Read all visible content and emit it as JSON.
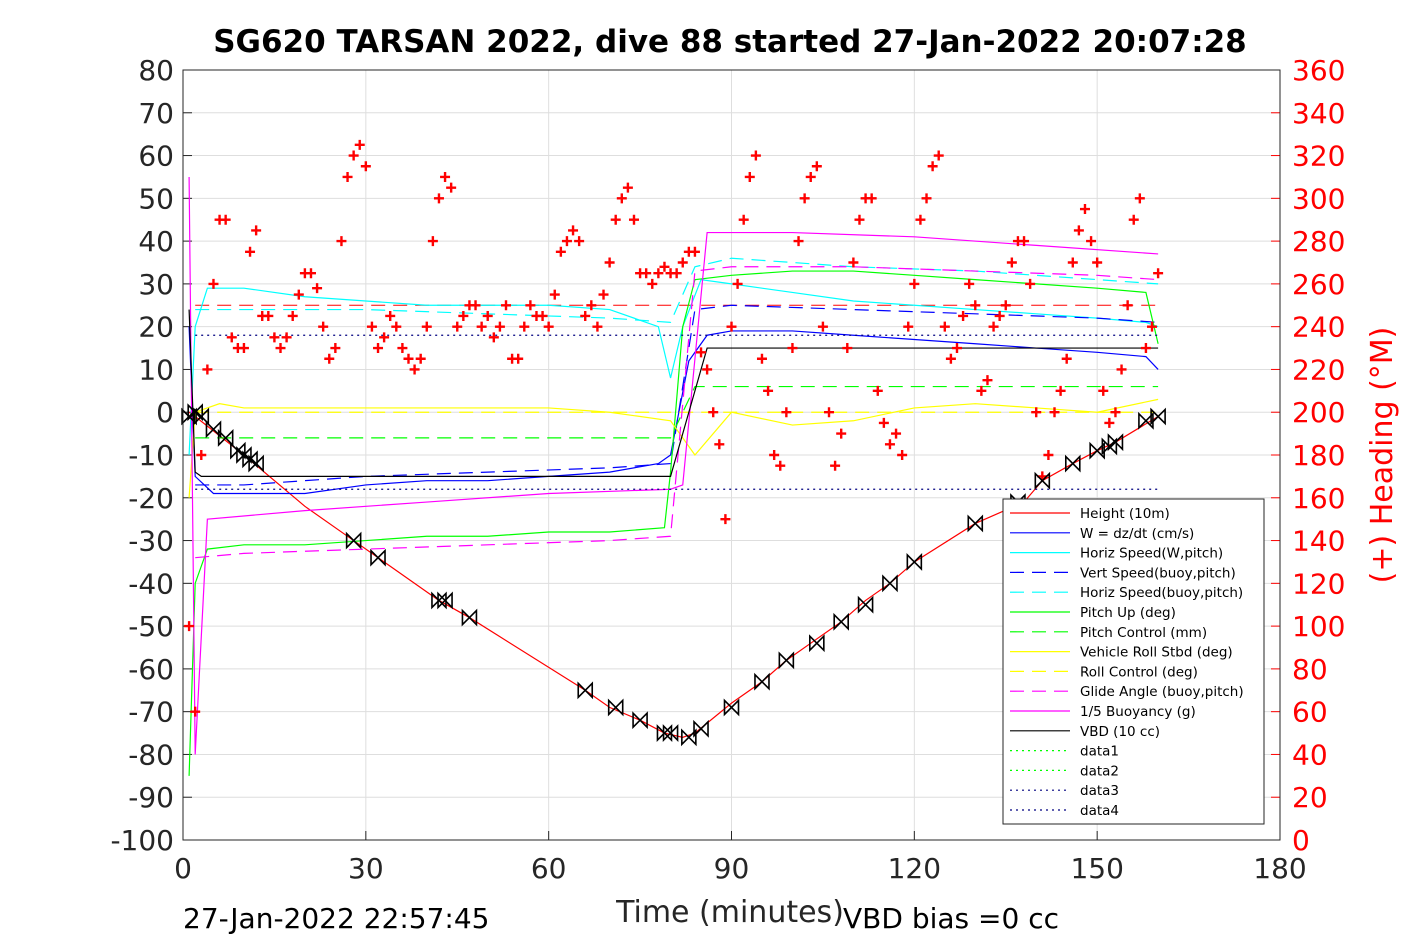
{
  "title": "SG620 TARSAN 2022, dive 88 started 27-Jan-2022 20:07:28",
  "footer": {
    "left": "27-Jan-2022 22:57:45",
    "right": "VBD bias =0 cc"
  },
  "chart_data": {
    "type": "line",
    "xlabel": "Time (minutes)",
    "ylabel": "",
    "ylabel_right": "(+) Heading (°M)",
    "xlim": [
      0,
      180
    ],
    "ylim": [
      -100,
      80
    ],
    "ylim_right": [
      0,
      360
    ],
    "xticks": [
      "0",
      "30",
      "60",
      "90",
      "120",
      "150",
      "180"
    ],
    "yticks": [
      "80",
      "70",
      "60",
      "50",
      "40",
      "30",
      "20",
      "10",
      "0",
      "-10",
      "-20",
      "-30",
      "-40",
      "-50",
      "-60",
      "-70",
      "-80",
      "-90",
      "-100"
    ],
    "yticks_right": [
      "360",
      "340",
      "320",
      "300",
      "280",
      "260",
      "240",
      "220",
      "200",
      "180",
      "160",
      "140",
      "120",
      "100",
      "80",
      "60",
      "40",
      "20",
      "0"
    ],
    "grid": true,
    "legend_placement": "bottom-right",
    "series": [
      {
        "name": "Height (10m)",
        "color": "#ff0000",
        "style": "solid",
        "x": [
          1,
          2,
          10,
          20,
          28,
          32,
          42,
          47,
          66,
          70,
          75,
          79,
          82,
          84,
          90,
          95,
          99,
          104,
          108,
          112,
          116,
          120,
          130,
          138,
          141,
          146,
          150,
          153,
          160
        ],
        "y": [
          0,
          -1,
          -10,
          -22,
          -30,
          -34,
          -44,
          -48,
          -65,
          -69,
          -72,
          -75,
          -76,
          -75,
          -68,
          -63,
          -58,
          -53,
          -49,
          -44,
          -40,
          -35,
          -26,
          -21,
          -16,
          -12,
          -9,
          -7,
          -1
        ]
      },
      {
        "name": "W = dz/dt (cm/s)",
        "color": "#0000ff",
        "style": "solid",
        "x": [
          1,
          2,
          5,
          10,
          20,
          30,
          40,
          50,
          60,
          70,
          78,
          80,
          83,
          86,
          90,
          100,
          110,
          120,
          130,
          140,
          150,
          158,
          160
        ],
        "y": [
          20,
          -15,
          -19,
          -19,
          -19,
          -17,
          -16,
          -16,
          -15,
          -14,
          -12,
          -10,
          12,
          18,
          19,
          19,
          18,
          17,
          16,
          15,
          14,
          13,
          10
        ]
      },
      {
        "name": "Horiz Speed(W,pitch)",
        "color": "#00ffff",
        "style": "solid",
        "x": [
          1,
          2,
          4,
          10,
          20,
          30,
          40,
          50,
          60,
          70,
          78,
          80,
          82,
          85,
          90,
          100,
          110,
          120,
          130,
          140,
          150,
          158,
          160
        ],
        "y": [
          -10,
          20,
          29,
          29,
          27,
          26,
          25,
          25,
          25,
          24,
          20,
          8,
          20,
          31,
          30,
          28,
          26,
          25,
          24,
          23,
          22,
          21,
          20
        ]
      },
      {
        "name": "Vert Speed(buoy,pitch)",
        "color": "#0000ff",
        "style": "dashed",
        "x": [
          2,
          10,
          30,
          50,
          70,
          80,
          84,
          90,
          110,
          130,
          150,
          160
        ],
        "y": [
          -17,
          -17,
          -15,
          -14,
          -13,
          -12,
          24,
          25,
          24,
          23,
          22,
          21
        ]
      },
      {
        "name": "Horiz Speed(buoy,pitch)",
        "color": "#00ffff",
        "style": "dashed",
        "x": [
          2,
          10,
          30,
          50,
          70,
          80,
          84,
          90,
          110,
          130,
          150,
          160
        ],
        "y": [
          24,
          24,
          24,
          23,
          22,
          21,
          34,
          36,
          34,
          33,
          31,
          30
        ]
      },
      {
        "name": "Pitch Up (deg)",
        "color": "#00ff00",
        "style": "solid",
        "x": [
          1,
          2,
          4,
          10,
          20,
          30,
          40,
          50,
          60,
          70,
          79,
          80,
          82,
          84,
          90,
          100,
          110,
          120,
          130,
          140,
          150,
          158,
          160
        ],
        "y": [
          -85,
          -40,
          -32,
          -31,
          -31,
          -30,
          -29,
          -29,
          -28,
          -28,
          -27,
          -14,
          20,
          31,
          32,
          33,
          33,
          32,
          31,
          30,
          29,
          28,
          16
        ]
      },
      {
        "name": "Pitch Control (mm)",
        "color": "#00ff00",
        "style": "dashed",
        "x": [
          2,
          80,
          84,
          160
        ],
        "y": [
          -6,
          -6,
          6,
          6
        ]
      },
      {
        "name": "Vehicle Roll Stbd (deg)",
        "color": "#ffff00",
        "style": "solid",
        "x": [
          1,
          2,
          6,
          10,
          20,
          30,
          40,
          50,
          60,
          70,
          80,
          84,
          90,
          100,
          110,
          120,
          130,
          140,
          150,
          160
        ],
        "y": [
          -20,
          0,
          2,
          1,
          1,
          1,
          1,
          1,
          1,
          0,
          -2,
          -10,
          0,
          -3,
          -2,
          1,
          2,
          1,
          0,
          3
        ]
      },
      {
        "name": "Roll Control (deg)",
        "color": "#ffff00",
        "style": "dashed",
        "x": [
          2,
          160
        ],
        "y": [
          0,
          0
        ]
      },
      {
        "name": "Glide Angle (buoy,pitch)",
        "color": "#ff00ff",
        "style": "dashed",
        "x": [
          2,
          10,
          30,
          50,
          70,
          80,
          84,
          90,
          110,
          130,
          150,
          160
        ],
        "y": [
          -34,
          -33,
          -32,
          -31,
          -30,
          -29,
          33,
          34,
          34,
          33,
          32,
          31
        ]
      },
      {
        "name": "1/5 Buoyancy (g)",
        "color": "#ff00ff",
        "style": "solid",
        "x": [
          1,
          2,
          4,
          20,
          40,
          60,
          80,
          82,
          86,
          100,
          120,
          140,
          160
        ],
        "y": [
          55,
          -80,
          -25,
          -23,
          -21,
          -19,
          -18,
          -17,
          42,
          42,
          41,
          39,
          37
        ]
      },
      {
        "name": "VBD (10 cc)",
        "color": "#000000",
        "style": "solid",
        "x": [
          1,
          2,
          3,
          80,
          86,
          160
        ],
        "y": [
          24,
          -14,
          -15,
          -15,
          15,
          15
        ]
      },
      {
        "name": "data1",
        "color": "#00ff00",
        "style": "dotted",
        "x": [],
        "y": []
      },
      {
        "name": "data2",
        "color": "#00ff00",
        "style": "dotted",
        "x": [],
        "y": []
      },
      {
        "name": "data3",
        "color": "#000080",
        "style": "dotted",
        "x": [
          2,
          160
        ],
        "y": [
          18,
          18
        ]
      },
      {
        "name": "data4",
        "color": "#000080",
        "style": "dotted",
        "x": [
          2,
          160
        ],
        "y": [
          -18,
          -18
        ]
      }
    ],
    "reference_lines": [
      {
        "color": "#ff0000",
        "style": "dashed",
        "axis": "right",
        "x": [
          2,
          160
        ],
        "y": [
          250,
          250
        ]
      }
    ],
    "heading_points": {
      "color": "#ff0000",
      "marker": "+",
      "axis": "right",
      "x": [
        1,
        2,
        3,
        4,
        5,
        6,
        7,
        8,
        9,
        10,
        11,
        12,
        13,
        14,
        15,
        16,
        17,
        18,
        19,
        20,
        21,
        22,
        23,
        24,
        25,
        26,
        27,
        28,
        29,
        30,
        31,
        32,
        33,
        34,
        35,
        36,
        37,
        38,
        39,
        40,
        41,
        42,
        43,
        44,
        45,
        46,
        47,
        48,
        49,
        50,
        51,
        52,
        53,
        54,
        55,
        56,
        57,
        58,
        59,
        60,
        61,
        62,
        63,
        64,
        65,
        66,
        67,
        68,
        69,
        70,
        71,
        72,
        73,
        74,
        75,
        76,
        77,
        78,
        79,
        80,
        81,
        82,
        83,
        84,
        85,
        86,
        87,
        88,
        89,
        90,
        91,
        92,
        93,
        94,
        95,
        96,
        97,
        98,
        99,
        100,
        101,
        102,
        103,
        104,
        105,
        106,
        107,
        108,
        109,
        110,
        111,
        112,
        113,
        114,
        115,
        116,
        117,
        118,
        119,
        120,
        121,
        122,
        123,
        124,
        125,
        126,
        127,
        128,
        129,
        130,
        131,
        132,
        133,
        134,
        135,
        136,
        137,
        138,
        139,
        140,
        141,
        142,
        143,
        144,
        145,
        146,
        147,
        148,
        149,
        150,
        151,
        152,
        153,
        154,
        155,
        156,
        157,
        158,
        159,
        160
      ],
      "y": [
        100,
        60,
        180,
        220,
        260,
        290,
        290,
        235,
        230,
        230,
        275,
        285,
        245,
        245,
        235,
        230,
        235,
        245,
        255,
        265,
        265,
        258,
        240,
        225,
        230,
        280,
        310,
        320,
        325,
        315,
        240,
        230,
        235,
        245,
        240,
        230,
        225,
        220,
        225,
        240,
        280,
        300,
        310,
        305,
        240,
        245,
        250,
        250,
        240,
        245,
        235,
        240,
        250,
        225,
        225,
        240,
        250,
        245,
        245,
        240,
        255,
        275,
        280,
        285,
        280,
        245,
        250,
        240,
        255,
        270,
        290,
        300,
        305,
        290,
        265,
        265,
        260,
        265,
        268,
        265,
        265,
        270,
        275,
        275,
        228,
        220,
        200,
        185,
        150,
        240,
        260,
        290,
        310,
        320,
        225,
        210,
        180,
        175,
        200,
        230,
        280,
        300,
        310,
        315,
        240,
        200,
        175,
        190,
        230,
        270,
        290,
        300,
        300,
        210,
        195,
        185,
        190,
        180,
        240,
        260,
        290,
        300,
        315,
        320,
        240,
        225,
        230,
        245,
        260,
        250,
        210,
        215,
        240,
        245,
        250,
        270,
        280,
        280,
        260,
        200,
        170,
        180,
        200,
        210,
        225,
        270,
        285,
        295,
        280,
        270,
        210,
        195,
        200,
        220,
        250,
        290,
        300,
        230,
        240,
        265
      ]
    },
    "black_markers": {
      "marker": "bowtie",
      "x": [
        1,
        2,
        3,
        5,
        7,
        9,
        10,
        11,
        12,
        28,
        32,
        42,
        43,
        47,
        66,
        71,
        75,
        79,
        80,
        83,
        85,
        90,
        95,
        99,
        104,
        108,
        112,
        116,
        120,
        130,
        137,
        141,
        146,
        150,
        152,
        153,
        158,
        160
      ],
      "y": [
        -1,
        0,
        -1,
        -4,
        -6,
        -9,
        -10,
        -11,
        -12,
        -30,
        -34,
        -44,
        -44,
        -48,
        -65,
        -69,
        -72,
        -75,
        -75,
        -76,
        -74,
        -69,
        -63,
        -58,
        -54,
        -49,
        -45,
        -40,
        -35,
        -26,
        -21,
        -16,
        -12,
        -9,
        -8,
        -7,
        -2,
        -1
      ]
    }
  }
}
